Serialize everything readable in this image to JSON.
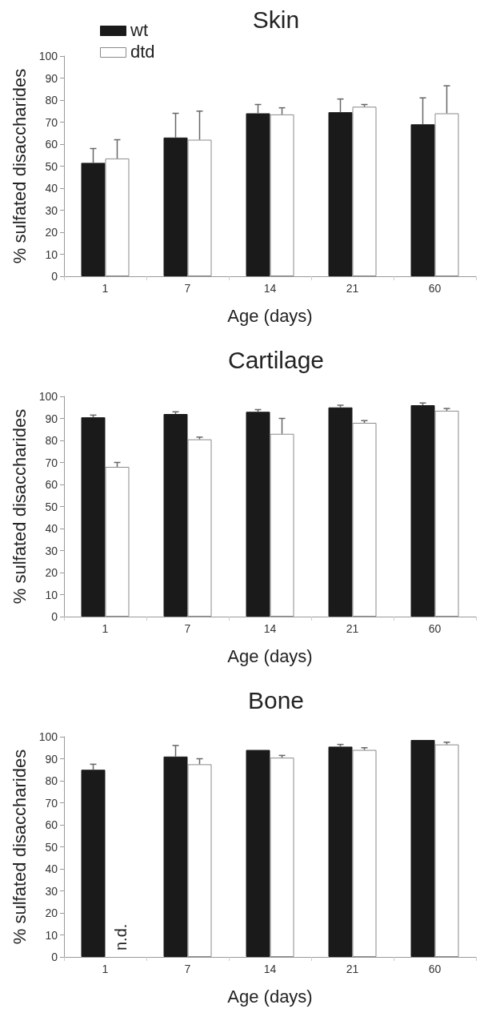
{
  "chart_data": [
    {
      "type": "bar",
      "title": "Skin",
      "xlabel": "Age (days)",
      "ylabel": "% sulfated disaccharides",
      "categories": [
        "1",
        "7",
        "14",
        "21",
        "60"
      ],
      "series": [
        {
          "name": "wt",
          "color": "#1a1a1a",
          "values": [
            51.5,
            63,
            74,
            74.5,
            69
          ],
          "errors": [
            6.5,
            11,
            4,
            6,
            12
          ]
        },
        {
          "name": "dtd",
          "color": "#ffffff",
          "values": [
            53.5,
            62,
            73.5,
            77,
            74
          ],
          "errors": [
            8.5,
            13,
            3,
            1,
            12.5
          ]
        }
      ],
      "ylim": [
        0,
        100
      ],
      "yticks": [
        0,
        10,
        20,
        30,
        40,
        50,
        60,
        70,
        80,
        90,
        100
      ],
      "grid": false,
      "legend": "top left"
    },
    {
      "type": "bar",
      "title": "Cartilage",
      "xlabel": "Age (days)",
      "ylabel": "% sulfated disaccharides",
      "categories": [
        "1",
        "7",
        "14",
        "21",
        "60"
      ],
      "series": [
        {
          "color": "#1a1a1a",
          "values": [
            90.5,
            92,
            93,
            95,
            96
          ],
          "errors": [
            1,
            1,
            1,
            1,
            1
          ]
        },
        {
          "color": "#ffffff",
          "values": [
            68,
            80.5,
            83,
            88,
            93.5
          ],
          "errors": [
            2,
            1,
            7,
            1,
            1
          ]
        }
      ],
      "ylim": [
        0,
        100
      ],
      "yticks": [
        0,
        10,
        20,
        30,
        40,
        50,
        60,
        70,
        80,
        90,
        100
      ],
      "grid": false,
      "legend": false
    },
    {
      "type": "bar",
      "title": "Bone",
      "xlabel": "Age (days)",
      "ylabel": "% sulfated disaccharides",
      "categories": [
        "1",
        "7",
        "14",
        "21",
        "60"
      ],
      "series": [
        {
          "color": "#1a1a1a",
          "values": [
            85,
            91,
            94,
            95.5,
            98.5
          ],
          "errors": [
            2.5,
            5,
            null,
            1,
            null
          ]
        },
        {
          "color": "#ffffff",
          "values": [
            null,
            87.5,
            90.5,
            94,
            96.5
          ],
          "errors": [
            null,
            2.5,
            1,
            1,
            1
          ]
        }
      ],
      "annotations": [
        {
          "text": "n.d.",
          "x": "1"
        }
      ],
      "ylim": [
        0,
        100
      ],
      "yticks": [
        0,
        10,
        20,
        30,
        40,
        50,
        60,
        70,
        80,
        90,
        100
      ],
      "grid": false,
      "legend": false
    }
  ]
}
